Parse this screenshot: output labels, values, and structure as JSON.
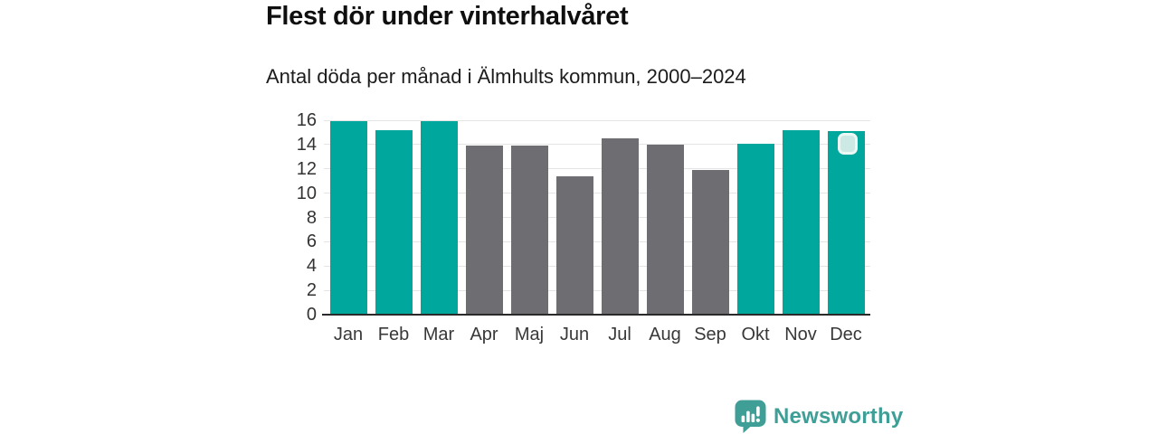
{
  "header": {
    "title": "Flest dör under vinterhalvåret",
    "subtitle": "Antal döda per månad i Älmhults kommun, 2000–2024"
  },
  "chart_data": {
    "type": "bar",
    "title": "Flest dör under vinterhalvåret",
    "subtitle": "Antal döda per månad i Älmhults kommun, 2000–2024",
    "categories": [
      "Jan",
      "Feb",
      "Mar",
      "Apr",
      "Maj",
      "Jun",
      "Jul",
      "Aug",
      "Sep",
      "Okt",
      "Nov",
      "Dec"
    ],
    "values": [
      15.9,
      15.2,
      15.9,
      13.9,
      13.9,
      11.4,
      14.5,
      14.0,
      11.9,
      14.1,
      15.2,
      15.1
    ],
    "bar_colors": [
      "#00a79c",
      "#00a79c",
      "#00a79c",
      "#6e6d72",
      "#6e6d72",
      "#6e6d72",
      "#6e6d72",
      "#6e6d72",
      "#6e6d72",
      "#00a79c",
      "#00a79c",
      "#00a79c"
    ],
    "xlabel": "",
    "ylabel": "",
    "ylim": [
      0,
      16
    ],
    "yticks": [
      0,
      2,
      4,
      6,
      8,
      10,
      12,
      14,
      16
    ],
    "grid": true,
    "legend_position": "none",
    "highlight_marker_month": "Dec"
  },
  "palette": {
    "winter_bar": "#00a79c",
    "summer_bar": "#6e6d72",
    "grid_line": "#e4e4e4",
    "axis_line": "#2a2a2a",
    "tick_label": "#333333",
    "marker_fill": "#cde9e5",
    "marker_border": "#edf8f5",
    "brand": "#3f9e96"
  },
  "footer": {
    "brand": "Newsworthy",
    "logo_icon": "bar-chart-speech-bubble-icon"
  }
}
